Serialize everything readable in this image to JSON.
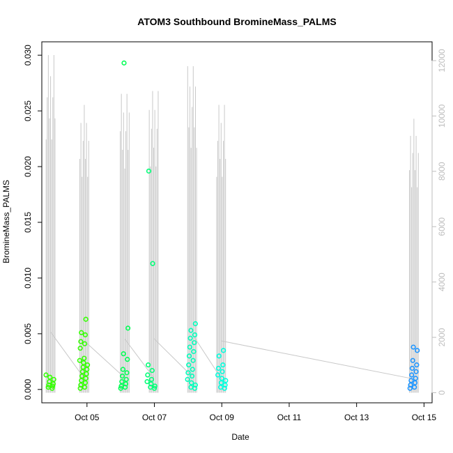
{
  "chart_data": {
    "type": "scatter",
    "title": "ATOM3 Southbound BromineMass_PALMS",
    "xlabel": "Date",
    "ylabel": "BromineMass_PALMS",
    "x_ticks": [
      "Oct 05",
      "Oct 07",
      "Oct 09",
      "Oct 11",
      "Oct 13",
      "Oct 15"
    ],
    "y_ticks": [
      "0.000",
      "0.005",
      "0.010",
      "0.015",
      "0.020",
      "0.025",
      "0.030"
    ],
    "y2_ticks": [
      "0",
      "2000",
      "4000",
      "6000",
      "8000",
      "10000",
      "12000"
    ],
    "xlim_day": [
      3.66,
      15.24
    ],
    "ylim": [
      -0.0012,
      0.0312
    ],
    "y2lim": [
      -366,
      12680
    ],
    "colors": {
      "secondary_axis": "#bdbdbd",
      "altitude_line": "#c8c8c8",
      "flight_1": "#33ff00",
      "flight_2": "#00ff55",
      "flight_3": "#00ff77",
      "flight_4": "#00ff99",
      "flight_5": "#00ffbb",
      "flight_6": "#00ffdd",
      "flight_7": "#1f96ff"
    },
    "series": [
      {
        "flight": 1,
        "color_key": "flight_1",
        "x_day": 3.9,
        "points": [
          0.0013,
          0.0011,
          0.0009,
          0.0007,
          0.0005,
          0.0004,
          0.0003,
          0.0002,
          0.0001
        ]
      },
      {
        "flight": 2,
        "color_key": "flight_1",
        "x_day": 4.9,
        "points": [
          0.0063,
          0.0051,
          0.0049,
          0.0043,
          0.0041,
          0.0037,
          0.0028,
          0.0026,
          0.0024,
          0.0022,
          0.002,
          0.0018,
          0.0016,
          0.0014,
          0.0012,
          0.001,
          0.0008,
          0.0006,
          0.0004,
          0.0002,
          0.0001
        ]
      },
      {
        "flight": 3,
        "color_key": "flight_2",
        "x_day": 6.1,
        "points": [
          0.0293,
          0.0055,
          0.0032,
          0.0027,
          0.0018,
          0.0015,
          0.0012,
          0.0009,
          0.0007,
          0.0005,
          0.0003,
          0.0002,
          0.0001
        ]
      },
      {
        "flight": 4,
        "color_key": "flight_3",
        "x_day": 6.9,
        "points": [
          0.0196,
          0.0113,
          0.0022,
          0.0017,
          0.0013,
          0.0009,
          0.0007,
          0.0005,
          0.0003,
          0.0002,
          0.0001
        ]
      },
      {
        "flight": 5,
        "color_key": "flight_5",
        "x_day": 8.1,
        "points": [
          0.0059,
          0.0053,
          0.0049,
          0.0046,
          0.0042,
          0.0038,
          0.0034,
          0.003,
          0.0026,
          0.0022,
          0.0018,
          0.0015,
          0.0012,
          0.0009,
          0.0006,
          0.0004,
          0.0002,
          0.0001
        ]
      },
      {
        "flight": 6,
        "color_key": "flight_6",
        "x_day": 9.0,
        "points": [
          0.0035,
          0.003,
          0.0022,
          0.0019,
          0.0016,
          0.0013,
          0.001,
          0.0008,
          0.0006,
          0.0004,
          0.0002,
          0.0001
        ]
      },
      {
        "flight": 7,
        "color_key": "flight_7",
        "x_day": 14.7,
        "points": [
          0.0038,
          0.0035,
          0.0026,
          0.0022,
          0.0019,
          0.0016,
          0.0013,
          0.001,
          0.0008,
          0.0006,
          0.0004,
          0.0002,
          0.0001
        ]
      }
    ],
    "altitude_series": [
      {
        "flight": 1,
        "x_day": 3.92,
        "max": 12200
      },
      {
        "flight": 2,
        "x_day": 4.92,
        "max": 10400
      },
      {
        "flight": 3,
        "x_day": 6.12,
        "max": 10800
      },
      {
        "flight": 4,
        "x_day": 6.98,
        "max": 10900
      },
      {
        "flight": 5,
        "x_day": 8.12,
        "max": 11800
      },
      {
        "flight": 6,
        "x_day": 8.98,
        "max": 10400
      },
      {
        "flight": 7,
        "x_day": 14.7,
        "max": 9900
      }
    ]
  }
}
